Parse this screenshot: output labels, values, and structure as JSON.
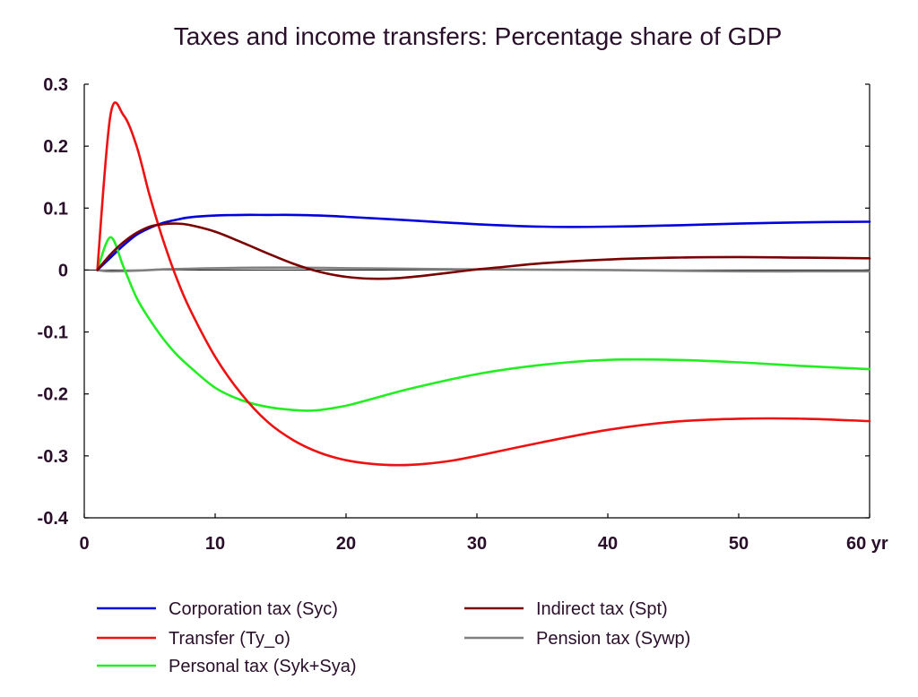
{
  "chart_data": {
    "type": "line",
    "title": "Taxes and income transfers: Percentage share of GDP",
    "xlabel": "",
    "ylabel": "",
    "xlim": [
      0,
      60
    ],
    "ylim": [
      -0.4,
      0.3
    ],
    "x_ticks": [
      0,
      10,
      20,
      30,
      40,
      50,
      60
    ],
    "x_tick_labels": [
      "0",
      "10",
      "20",
      "30",
      "40",
      "50",
      "60 yr"
    ],
    "y_ticks": [
      0.3,
      0.2,
      0.1,
      0,
      -0.1,
      -0.2,
      -0.3,
      -0.4
    ],
    "y_tick_labels": [
      "0.3",
      "0.2",
      "0.1",
      "0",
      "-0.1",
      "-0.2",
      "-0.3",
      "-0.4"
    ],
    "grid": false,
    "legend_position": "bottom",
    "series": [
      {
        "name": "Corporation tax (Syc)",
        "color": "#0000dd",
        "x": [
          1,
          2,
          3,
          4,
          5,
          6,
          7,
          8,
          10,
          12,
          14,
          16,
          18,
          20,
          25,
          30,
          35,
          40,
          45,
          50,
          55,
          60
        ],
        "y": [
          0,
          0.02,
          0.04,
          0.057,
          0.068,
          0.076,
          0.081,
          0.085,
          0.088,
          0.089,
          0.089,
          0.089,
          0.088,
          0.086,
          0.08,
          0.074,
          0.07,
          0.07,
          0.072,
          0.075,
          0.077,
          0.078
        ]
      },
      {
        "name": "Indirect tax (Spt)",
        "color": "#7a0000",
        "x": [
          1,
          2,
          3,
          4,
          5,
          6,
          7,
          8,
          10,
          12,
          14,
          16,
          18,
          20,
          22,
          24,
          26,
          28,
          30,
          32,
          35,
          40,
          45,
          50,
          55,
          60
        ],
        "y": [
          0,
          0.025,
          0.045,
          0.06,
          0.07,
          0.074,
          0.075,
          0.073,
          0.062,
          0.045,
          0.027,
          0.01,
          -0.003,
          -0.011,
          -0.014,
          -0.013,
          -0.009,
          -0.004,
          0.001,
          0.005,
          0.011,
          0.017,
          0.02,
          0.021,
          0.02,
          0.019
        ]
      },
      {
        "name": "Transfer (Ty_o)",
        "color": "#ee1111",
        "x": [
          1,
          2,
          3,
          4,
          5,
          6,
          7,
          8,
          10,
          12,
          14,
          16,
          18,
          20,
          22,
          24,
          26,
          28,
          30,
          35,
          40,
          45,
          50,
          55,
          60
        ],
        "y": [
          0,
          0.25,
          0.25,
          0.2,
          0.12,
          0.05,
          -0.01,
          -0.06,
          -0.14,
          -0.2,
          -0.245,
          -0.275,
          -0.295,
          -0.307,
          -0.313,
          -0.315,
          -0.313,
          -0.308,
          -0.3,
          -0.278,
          -0.258,
          -0.245,
          -0.24,
          -0.24,
          -0.244
        ]
      },
      {
        "name": "Pension tax (Sywp)",
        "color": "#808080",
        "x": [
          1,
          2,
          4,
          6,
          8,
          10,
          15,
          20,
          25,
          30,
          40,
          50,
          60
        ],
        "y": [
          0,
          -0.002,
          -0.001,
          0.001,
          0.002,
          0.003,
          0.004,
          0.003,
          0.002,
          0.001,
          0,
          -0.002,
          -0.002
        ]
      },
      {
        "name": "Personal tax (Syk+Sya)",
        "color": "#22ee22",
        "x": [
          1,
          2,
          3,
          4,
          5,
          6,
          7,
          8,
          10,
          12,
          14,
          16,
          17,
          18,
          20,
          22,
          25,
          30,
          35,
          40,
          45,
          50,
          55,
          60
        ],
        "y": [
          0,
          0.053,
          0.005,
          -0.045,
          -0.08,
          -0.11,
          -0.135,
          -0.155,
          -0.19,
          -0.21,
          -0.221,
          -0.226,
          -0.227,
          -0.226,
          -0.219,
          -0.208,
          -0.191,
          -0.168,
          -0.153,
          -0.145,
          -0.145,
          -0.149,
          -0.155,
          -0.16
        ]
      }
    ]
  }
}
